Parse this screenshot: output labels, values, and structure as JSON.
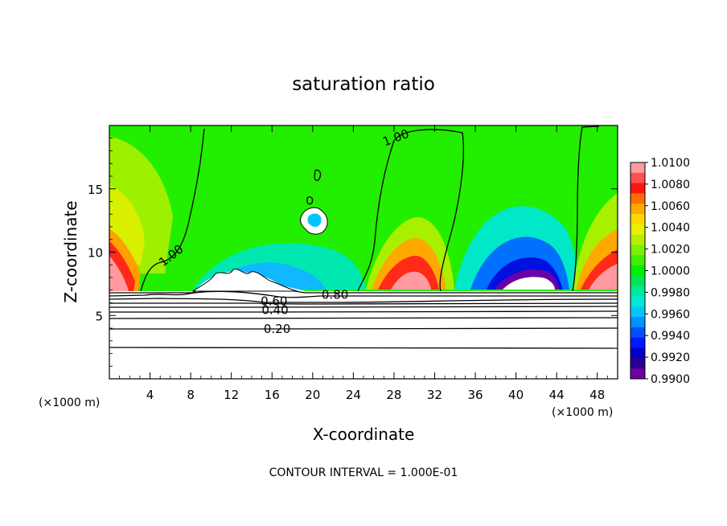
{
  "chart_data": {
    "type": "heatmap",
    "title": "saturation ratio",
    "xlabel": "X-coordinate",
    "ylabel": "Z-coordinate",
    "x_unit_left": "(×1000 m)",
    "x_unit_right": "(×1000 m)",
    "footer": "CONTOUR INTERVAL = 1.000E-01",
    "xlim": [
      0,
      50
    ],
    "ylim": [
      0,
      20
    ],
    "x_ticks": [
      4,
      8,
      12,
      16,
      20,
      24,
      28,
      32,
      36,
      40,
      44,
      48
    ],
    "y_ticks": [
      5,
      10,
      15
    ],
    "colorbar": {
      "min": 0.99,
      "max": 1.01,
      "labels": [
        "1.0100",
        "1.0080",
        "1.0060",
        "1.0040",
        "1.0020",
        "1.0000",
        "0.9980",
        "0.9960",
        "0.9940",
        "0.9920",
        "0.9900"
      ],
      "colors": [
        "#ff9aa0",
        "#ff5050",
        "#ff1414",
        "#ff6e00",
        "#ffa800",
        "#ffd800",
        "#e8f000",
        "#b4f000",
        "#7cf000",
        "#40ee00",
        "#00ee00",
        "#00e850",
        "#00e89c",
        "#00e8d8",
        "#00c8ff",
        "#0090ff",
        "#0050ff",
        "#0018ff",
        "#0000c8",
        "#2a0090",
        "#7000a0"
      ]
    },
    "contour_labels": [
      {
        "text": "1.00",
        "x": 28.2,
        "z": 19.0,
        "angle": -20
      },
      {
        "text": "1.00",
        "x": 6.1,
        "z": 9.7,
        "angle": -38
      },
      {
        "text": "0.80",
        "x": 22.2,
        "z": 6.6,
        "angle": 0
      },
      {
        "text": "0.60",
        "x": 16.2,
        "z": 6.1,
        "angle": 0
      },
      {
        "text": "0.40",
        "x": 16.3,
        "z": 5.4,
        "angle": 0
      },
      {
        "text": "0.20",
        "x": 16.5,
        "z": 3.9,
        "angle": 0
      }
    ]
  }
}
